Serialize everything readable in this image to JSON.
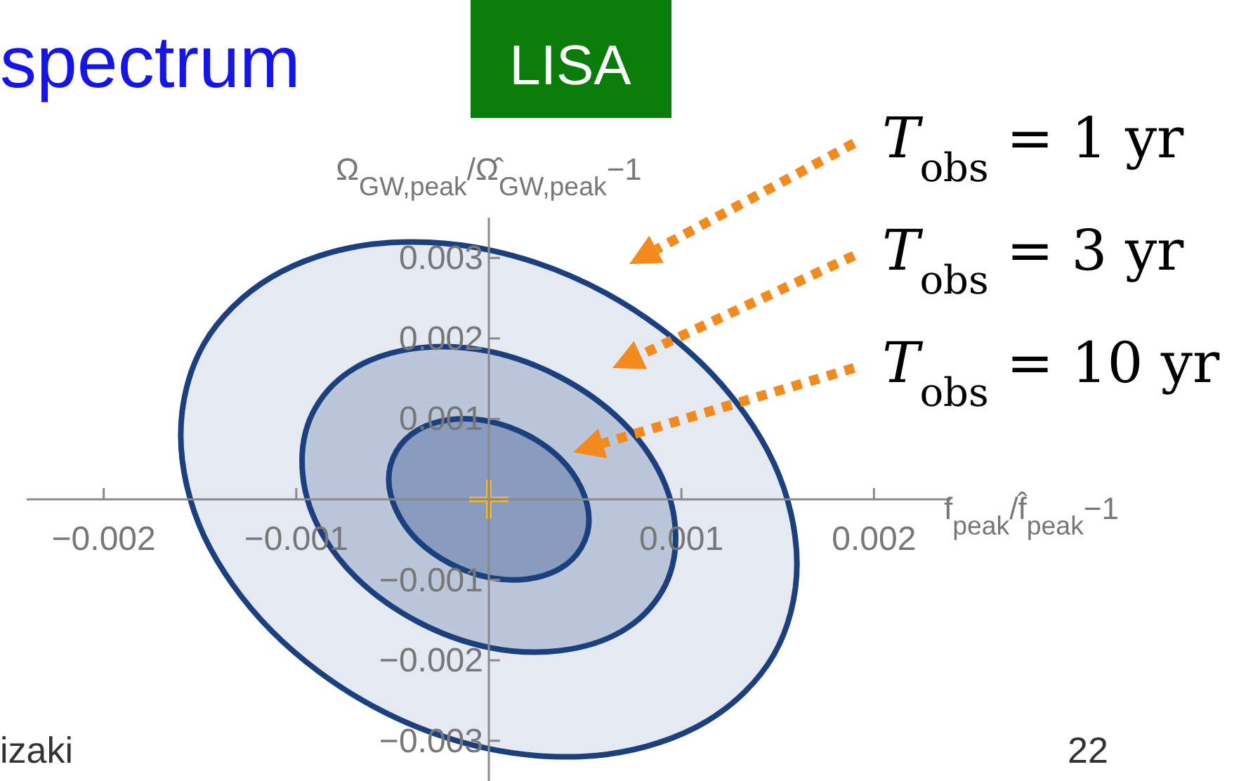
{
  "chart_data": {
    "type": "area",
    "title": "spectrum",
    "subtitle": "LISA",
    "xlabel": "f$_{peak}$/f̂$_{peak}$−1",
    "ylabel": "Ω$_{GW,peak}$/Ω̂$_{GW,peak}$−1",
    "xlim": [
      -0.0024,
      0.0024
    ],
    "ylim": [
      -0.0035,
      0.0035
    ],
    "xticks": [
      {
        "value": -0.002,
        "label": "−0.002"
      },
      {
        "value": -0.001,
        "label": "−0.001"
      },
      {
        "value": 0,
        "label": null
      },
      0.001,
      0.002
    ],
    "yticks": [
      {
        "value": -0.003,
        "label": "−0.003"
      },
      {
        "value": -0.002,
        "label": "−0.002"
      },
      {
        "value": -0.001,
        "label": "−0.001"
      },
      {
        "value": 0,
        "label": null
      },
      0.001,
      0.002,
      0.003
    ],
    "series": [
      {
        "color": "#e4e9f2",
        "x": [
          0.0016,
          0.00148,
          0.00113,
          0.00061,
          0,
          -0.00061,
          -0.00113,
          -0.00148,
          -0.0016,
          -0.00148,
          -0.00113,
          -0.00061,
          0,
          0.00061,
          0.00113,
          0.00148,
          0.0016
        ],
        "values": [
          -0.0008,
          0.00045,
          0.00163,
          0.00256,
          0.0031,
          0.00317,
          0.00276,
          0.00193,
          0.0008,
          -0.00045,
          -0.00163,
          -0.00256,
          -0.0031,
          -0.00317,
          -0.00276,
          -0.00193,
          -0.0008
        ]
      },
      {
        "color": "#bcc6da",
        "x": [
          0.00097,
          0.0009,
          0.00069,
          0.00037,
          0,
          -0.00037,
          -0.00069,
          -0.0009,
          -0.00097,
          -0.0009,
          -0.00069,
          -0.00037,
          0,
          0.00037,
          0.00069,
          0.0009,
          0.00097
        ],
        "values": [
          -0.00048,
          0.00027,
          0.00097,
          0.00152,
          0.00184,
          0.00188,
          0.00164,
          0.00114,
          0.00048,
          -0.00027,
          -0.00097,
          -0.00152,
          -0.00184,
          -0.00188,
          -0.00164,
          -0.00114,
          -0.00048
        ]
      },
      {
        "color": "#8a9bc0",
        "x": [
          0.00052,
          0.00048,
          0.00037,
          0.0002,
          0,
          -0.0002,
          -0.00037,
          -0.00048,
          -0.00052,
          -0.00048,
          -0.00037,
          -0.0002,
          0,
          0.0002,
          0.00037,
          0.00048,
          0.00052
        ],
        "values": [
          -0.00025,
          0.00014,
          0.00051,
          0.0008,
          0.00097,
          0.00099,
          0.00086,
          0.0006,
          0.00025,
          -0.00014,
          -0.00051,
          -0.0008,
          -0.00097,
          -0.00099,
          -0.00086,
          -0.0006,
          -0.00025
        ]
      },
      {
        "type": "scatter",
        "color": "#f0b43c",
        "marker": "cross",
        "x": [
          0
        ],
        "values": [
          0
        ]
      }
    ],
    "annotations": [
      "T$_{obs}$ = 1 yr",
      "T$_{obs}$ = 3 yr",
      "T$_{obs}$ = 10 yr",
      "izaki",
      "22"
    ]
  }
}
